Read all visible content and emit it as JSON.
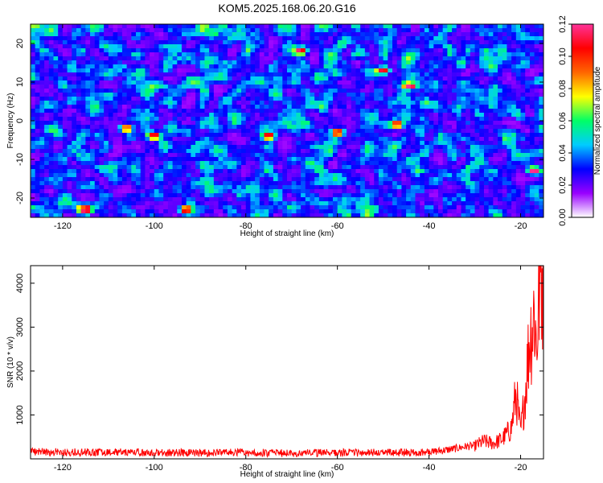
{
  "chart_data": [
    {
      "type": "heatmap",
      "title": "KOM5.2025.168.06.20.G16",
      "xlabel": "Height of straight line (km)",
      "ylabel": "Frequency (Hz)",
      "xlim": [
        -127,
        -15
      ],
      "ylim": [
        -25,
        25
      ],
      "x_ticks": [
        "-120",
        "-100",
        "-80",
        "-60",
        "-40",
        "-20"
      ],
      "x_tick_values": [
        -120,
        -100,
        -80,
        -60,
        -40,
        -20
      ],
      "y_ticks": [
        "-20",
        "-10",
        "0",
        "10",
        "20"
      ],
      "y_tick_values": [
        -20,
        -10,
        0,
        10,
        20
      ],
      "colorbar": {
        "label": "Normalized spectral amplitude",
        "range": [
          0,
          0.12
        ],
        "ticks": [
          "0.00",
          "0.02",
          "0.04",
          "0.06",
          "0.08",
          "0.10",
          "0.12"
        ],
        "tick_values": [
          0,
          0.02,
          0.04,
          0.06,
          0.08,
          0.1,
          0.12
        ],
        "colormap": [
          "#ffffff",
          "#9900ff",
          "#0000ff",
          "#00ccff",
          "#00ff66",
          "#ffff00",
          "#ff6600",
          "#ff0000",
          "#ff3399"
        ]
      },
      "field": "noise, typical amplitude 0.01-0.04 with isolated peaks up to about 0.11 (e.g. near x=-68,y=18; x=-17,y=-13)"
    },
    {
      "type": "line",
      "xlabel": "Height of straight line (km)",
      "ylabel": "SNR (10 * v/v)",
      "xlim": [
        -127,
        -15
      ],
      "ylim": [
        0,
        4400
      ],
      "x_ticks": [
        "-120",
        "-100",
        "-80",
        "-60",
        "-40",
        "-20"
      ],
      "x_tick_values": [
        -120,
        -100,
        -80,
        -60,
        -40,
        -20
      ],
      "y_ticks": [
        "1000",
        "2000",
        "3000",
        "4000"
      ],
      "y_tick_values": [
        1000,
        2000,
        3000,
        4000
      ],
      "line_color": "#ff0000",
      "series": [
        {
          "x": [
            -127,
            -120,
            -110,
            -100,
            -90,
            -80,
            -70,
            -60,
            -50,
            -40,
            -35,
            -32,
            -30,
            -28,
            -26,
            -24,
            -22,
            -21,
            -20,
            -19,
            -18,
            -17.5,
            -17,
            -16.5,
            -16,
            -15.5,
            -15
          ],
          "values": [
            160,
            150,
            150,
            140,
            140,
            140,
            130,
            140,
            140,
            150,
            220,
            280,
            300,
            400,
            350,
            450,
            700,
            1500,
            600,
            1500,
            2800,
            3000,
            3400,
            2500,
            3800,
            4200,
            4350
          ]
        }
      ]
    }
  ]
}
